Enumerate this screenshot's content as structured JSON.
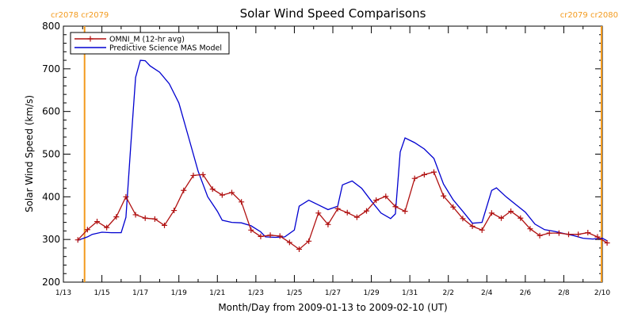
{
  "chart_data": {
    "type": "line",
    "title": "Solar Wind Speed Comparisons",
    "xlabel": "Month/Day from 2009-01-13 to 2009-02-10 (UT)",
    "ylabel": "Solar Wind Speed (km/s)",
    "ylim": [
      200,
      800
    ],
    "xlim": [
      "2009-01-13",
      "2009-02-10"
    ],
    "x_tick_labels": [
      "1/13",
      "1/15",
      "1/17",
      "1/19",
      "1/21",
      "1/23",
      "1/25",
      "1/27",
      "1/29",
      "1/31",
      "2/2",
      "2/4",
      "2/6",
      "2/8",
      "2/10"
    ],
    "y_tick_labels": [
      "200",
      "300",
      "400",
      "500",
      "600",
      "700",
      "800"
    ],
    "grid": false,
    "legend_position": "top-left",
    "carrington_markers": [
      {
        "date": "2009-01-14.1",
        "label": "cr2078 cr2079",
        "color": "#f39a1d"
      },
      {
        "date": "2009-02-10.0",
        "label": "cr2079 cr2080",
        "color": "#f39a1d"
      }
    ],
    "series": [
      {
        "name": "OMNI_M (12-hr avg)",
        "color": "#b01010",
        "marker": "plus",
        "points": [
          [
            "2009-01-13 18:00",
            299
          ],
          [
            "2009-01-14 06:00",
            323
          ],
          [
            "2009-01-14 18:00",
            342
          ],
          [
            "2009-01-15 06:00",
            328
          ],
          [
            "2009-01-15 18:00",
            353
          ],
          [
            "2009-01-16 06:00",
            400
          ],
          [
            "2009-01-16 18:00",
            358
          ],
          [
            "2009-01-17 06:00",
            350
          ],
          [
            "2009-01-17 18:00",
            348
          ],
          [
            "2009-01-18 06:00",
            333
          ],
          [
            "2009-01-18 18:00",
            368
          ],
          [
            "2009-01-19 06:00",
            415
          ],
          [
            "2009-01-19 18:00",
            450
          ],
          [
            "2009-01-20 06:00",
            452
          ],
          [
            "2009-01-20 18:00",
            418
          ],
          [
            "2009-01-21 06:00",
            404
          ],
          [
            "2009-01-21 18:00",
            410
          ],
          [
            "2009-01-22 06:00",
            388
          ],
          [
            "2009-01-22 18:00",
            322
          ],
          [
            "2009-01-23 06:00",
            307
          ],
          [
            "2009-01-23 18:00",
            310
          ],
          [
            "2009-01-24 06:00",
            308
          ],
          [
            "2009-01-24 18:00",
            293
          ],
          [
            "2009-01-25 06:00",
            277
          ],
          [
            "2009-01-25 18:00",
            296
          ],
          [
            "2009-01-26 06:00",
            362
          ],
          [
            "2009-01-26 18:00",
            335
          ],
          [
            "2009-01-27 06:00",
            372
          ],
          [
            "2009-01-27 18:00",
            363
          ],
          [
            "2009-01-28 06:00",
            352
          ],
          [
            "2009-01-28 18:00",
            367
          ],
          [
            "2009-01-29 06:00",
            392
          ],
          [
            "2009-01-29 18:00",
            401
          ],
          [
            "2009-01-30 06:00",
            377
          ],
          [
            "2009-01-30 18:00",
            366
          ],
          [
            "2009-01-31 06:00",
            443
          ],
          [
            "2009-01-31 18:00",
            452
          ],
          [
            "2009-02-01 06:00",
            458
          ],
          [
            "2009-02-01 18:00",
            402
          ],
          [
            "2009-02-02 06:00",
            376
          ],
          [
            "2009-02-02 18:00",
            349
          ],
          [
            "2009-02-03 06:00",
            331
          ],
          [
            "2009-02-03 18:00",
            322
          ],
          [
            "2009-02-04 06:00",
            362
          ],
          [
            "2009-02-04 18:00",
            350
          ],
          [
            "2009-02-05 06:00",
            366
          ],
          [
            "2009-02-05 18:00",
            350
          ],
          [
            "2009-02-06 06:00",
            325
          ],
          [
            "2009-02-06 18:00",
            309
          ],
          [
            "2009-02-07 06:00",
            315
          ],
          [
            "2009-02-07 18:00",
            315
          ],
          [
            "2009-02-08 06:00",
            312
          ],
          [
            "2009-02-08 18:00",
            312
          ],
          [
            "2009-02-09 06:00",
            316
          ],
          [
            "2009-02-09 18:00",
            306
          ],
          [
            "2009-02-10 06:00",
            292
          ]
        ]
      },
      {
        "name": "Predictive Science MAS Model",
        "color": "#0000d0",
        "marker": "none",
        "points": [
          [
            "2009-01-13 18:00",
            298
          ],
          [
            "2009-01-14 06:00",
            306
          ],
          [
            "2009-01-14 12:00",
            312
          ],
          [
            "2009-01-15 00:00",
            317
          ],
          [
            "2009-01-15 12:00",
            316
          ],
          [
            "2009-01-16 00:00",
            316
          ],
          [
            "2009-01-16 06:00",
            352
          ],
          [
            "2009-01-16 12:00",
            520
          ],
          [
            "2009-01-16 18:00",
            680
          ],
          [
            "2009-01-17 00:00",
            720
          ],
          [
            "2009-01-17 06:00",
            719
          ],
          [
            "2009-01-17 12:00",
            707
          ],
          [
            "2009-01-18 00:00",
            692
          ],
          [
            "2009-01-18 12:00",
            665
          ],
          [
            "2009-01-19 00:00",
            620
          ],
          [
            "2009-01-19 12:00",
            540
          ],
          [
            "2009-01-20 00:00",
            460
          ],
          [
            "2009-01-20 12:00",
            400
          ],
          [
            "2009-01-21 00:00",
            366
          ],
          [
            "2009-01-21 06:00",
            345
          ],
          [
            "2009-01-21 18:00",
            340
          ],
          [
            "2009-01-22 06:00",
            339
          ],
          [
            "2009-01-22 18:00",
            332
          ],
          [
            "2009-01-23 06:00",
            318
          ],
          [
            "2009-01-23 12:00",
            306
          ],
          [
            "2009-01-24 00:00",
            305
          ],
          [
            "2009-01-24 12:00",
            306
          ],
          [
            "2009-01-25 00:00",
            322
          ],
          [
            "2009-01-25 06:00",
            378
          ],
          [
            "2009-01-25 18:00",
            392
          ],
          [
            "2009-01-26 06:00",
            381
          ],
          [
            "2009-01-26 18:00",
            370
          ],
          [
            "2009-01-27 06:00",
            378
          ],
          [
            "2009-01-27 12:00",
            428
          ],
          [
            "2009-01-28 00:00",
            437
          ],
          [
            "2009-01-28 12:00",
            420
          ],
          [
            "2009-01-29 00:00",
            390
          ],
          [
            "2009-01-29 12:00",
            362
          ],
          [
            "2009-01-30 00:00",
            349
          ],
          [
            "2009-01-30 06:00",
            360
          ],
          [
            "2009-01-30 12:00",
            505
          ],
          [
            "2009-01-30 18:00",
            538
          ],
          [
            "2009-01-31 06:00",
            527
          ],
          [
            "2009-01-31 18:00",
            512
          ],
          [
            "2009-02-01 06:00",
            490
          ],
          [
            "2009-02-01 18:00",
            430
          ],
          [
            "2009-02-02 06:00",
            393
          ],
          [
            "2009-02-02 18:00",
            366
          ],
          [
            "2009-02-03 06:00",
            338
          ],
          [
            "2009-02-03 18:00",
            340
          ],
          [
            "2009-02-04 06:00",
            415
          ],
          [
            "2009-02-04 12:00",
            421
          ],
          [
            "2009-02-05 00:00",
            400
          ],
          [
            "2009-02-05 12:00",
            382
          ],
          [
            "2009-02-06 00:00",
            364
          ],
          [
            "2009-02-06 12:00",
            336
          ],
          [
            "2009-02-07 00:00",
            323
          ],
          [
            "2009-02-07 12:00",
            319
          ],
          [
            "2009-02-08 00:00",
            314
          ],
          [
            "2009-02-08 12:00",
            309
          ],
          [
            "2009-02-09 00:00",
            303
          ],
          [
            "2009-02-09 12:00",
            301
          ],
          [
            "2009-02-10 00:00",
            303
          ],
          [
            "2009-02-10 06:00",
            297
          ]
        ]
      }
    ]
  }
}
